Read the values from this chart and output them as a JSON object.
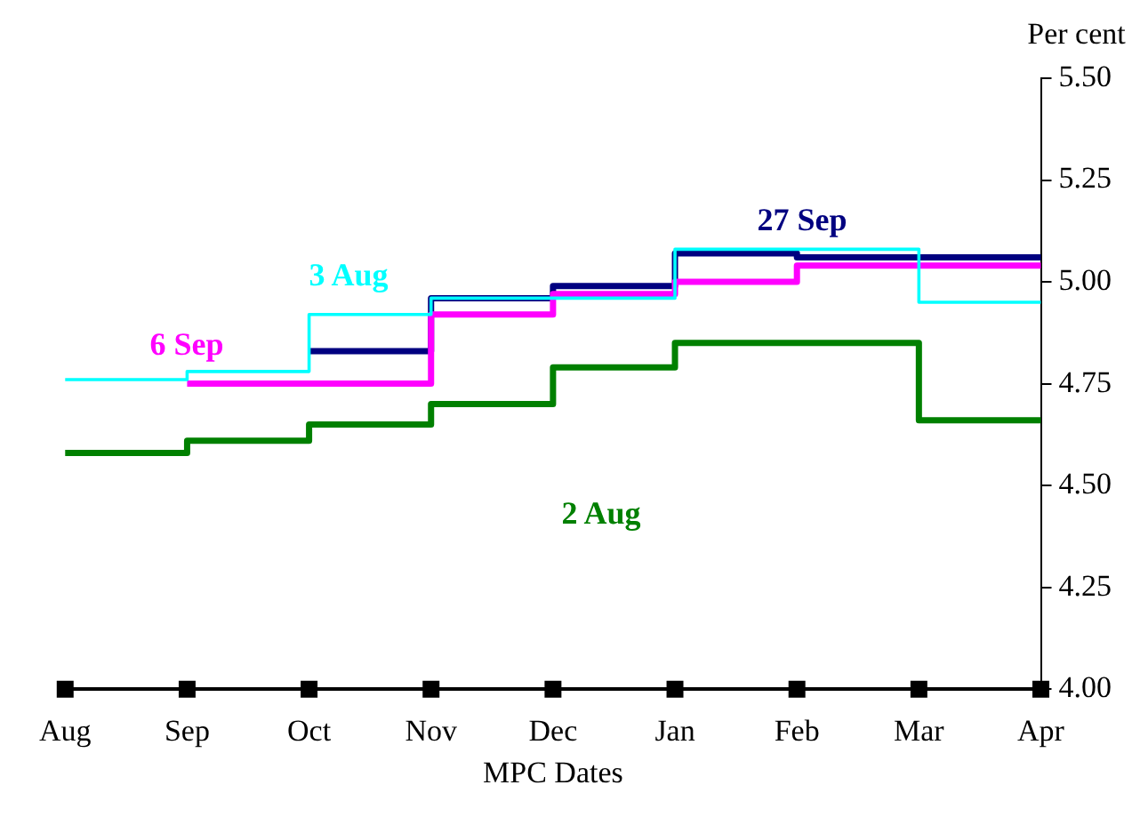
{
  "chart_data": {
    "type": "step",
    "xlabel": "MPC Dates",
    "ylabel": "Per cent",
    "categories": [
      "Aug",
      "Sep",
      "Oct",
      "Nov",
      "Dec",
      "Jan",
      "Feb",
      "Mar",
      "Apr"
    ],
    "ylim": [
      4,
      5.5
    ],
    "yticks": [
      {
        "value": 4,
        "label": "4.00"
      },
      {
        "value": 4.25,
        "label": "4.25"
      },
      {
        "value": 4.5,
        "label": "4.50"
      },
      {
        "value": 4.75,
        "label": "4.75"
      },
      {
        "value": 5,
        "label": "5.00"
      },
      {
        "value": 5.25,
        "label": "5.25"
      },
      {
        "value": 5.5,
        "label": "5.50"
      }
    ],
    "grid": false,
    "legend": false,
    "series": [
      {
        "name": "2 Aug",
        "color": "#008000",
        "values": [
          4.58,
          4.61,
          4.65,
          4.7,
          4.79,
          4.85,
          4.85,
          4.66,
          4.66
        ]
      },
      {
        "name": "3 Aug",
        "color": "#00ffff",
        "values": [
          4.76,
          4.78,
          4.92,
          4.96,
          4.96,
          5.08,
          5.08,
          4.95,
          4.95
        ]
      },
      {
        "name": "6 Sep",
        "color": "#ff00ff",
        "values": [
          null,
          4.75,
          4.75,
          4.92,
          4.97,
          5.0,
          5.04,
          5.04,
          5.04
        ]
      },
      {
        "name": "27 Sep",
        "color": "#000080",
        "values": [
          null,
          null,
          4.83,
          4.96,
          4.99,
          5.07,
          5.06,
          5.06,
          5.06
        ]
      },
      {
        "type": "scatter",
        "marker": "square",
        "color": "#000000",
        "values": [
          4,
          4,
          4,
          4,
          4,
          4,
          4,
          4,
          4
        ]
      }
    ]
  }
}
